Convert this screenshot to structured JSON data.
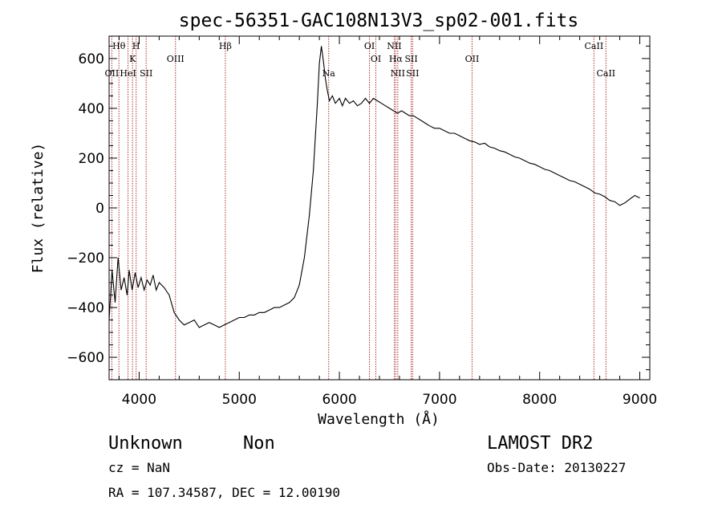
{
  "chart_data": {
    "type": "line",
    "title": "spec-56351-GAC108N13V3_sp02-001.fits",
    "xlabel": "Wavelength (Å)",
    "ylabel": "Flux (relative)",
    "xlim": [
      3700,
      9100
    ],
    "ylim": [
      -690,
      690
    ],
    "xticks": [
      4000,
      5000,
      6000,
      7000,
      8000,
      9000
    ],
    "yticks": [
      -600,
      -400,
      -200,
      0,
      200,
      400,
      600
    ],
    "x_tick_labels": [
      "4000",
      "5000",
      "6000",
      "7000",
      "8000",
      "9000"
    ],
    "y_tick_labels": [
      "−600",
      "−400",
      "−200",
      "0",
      "200",
      "400",
      "600"
    ],
    "grid": false,
    "legend": "none",
    "line_color": "#000000",
    "marker_line_color": "#b03030",
    "series": [
      {
        "points": [
          [
            3700,
            -450
          ],
          [
            3730,
            -250
          ],
          [
            3760,
            -380
          ],
          [
            3790,
            -200
          ],
          [
            3820,
            -330
          ],
          [
            3850,
            -280
          ],
          [
            3880,
            -350
          ],
          [
            3900,
            -250
          ],
          [
            3930,
            -330
          ],
          [
            3960,
            -260
          ],
          [
            3990,
            -320
          ],
          [
            4020,
            -280
          ],
          [
            4050,
            -330
          ],
          [
            4080,
            -290
          ],
          [
            4110,
            -310
          ],
          [
            4140,
            -270
          ],
          [
            4170,
            -330
          ],
          [
            4200,
            -300
          ],
          [
            4250,
            -320
          ],
          [
            4300,
            -350
          ],
          [
            4350,
            -420
          ],
          [
            4400,
            -450
          ],
          [
            4450,
            -470
          ],
          [
            4500,
            -460
          ],
          [
            4550,
            -450
          ],
          [
            4600,
            -480
          ],
          [
            4650,
            -470
          ],
          [
            4700,
            -460
          ],
          [
            4750,
            -470
          ],
          [
            4800,
            -480
          ],
          [
            4850,
            -470
          ],
          [
            4900,
            -460
          ],
          [
            4950,
            -450
          ],
          [
            5000,
            -440
          ],
          [
            5050,
            -440
          ],
          [
            5100,
            -430
          ],
          [
            5150,
            -430
          ],
          [
            5200,
            -420
          ],
          [
            5250,
            -420
          ],
          [
            5300,
            -410
          ],
          [
            5350,
            -400
          ],
          [
            5400,
            -400
          ],
          [
            5450,
            -390
          ],
          [
            5500,
            -380
          ],
          [
            5550,
            -360
          ],
          [
            5600,
            -310
          ],
          [
            5650,
            -200
          ],
          [
            5700,
            -30
          ],
          [
            5740,
            150
          ],
          [
            5780,
            420
          ],
          [
            5800,
            580
          ],
          [
            5820,
            650
          ],
          [
            5840,
            590
          ],
          [
            5860,
            520
          ],
          [
            5880,
            470
          ],
          [
            5900,
            430
          ],
          [
            5930,
            450
          ],
          [
            5960,
            420
          ],
          [
            6000,
            440
          ],
          [
            6030,
            410
          ],
          [
            6060,
            440
          ],
          [
            6100,
            420
          ],
          [
            6140,
            430
          ],
          [
            6180,
            410
          ],
          [
            6220,
            420
          ],
          [
            6260,
            440
          ],
          [
            6300,
            420
          ],
          [
            6340,
            440
          ],
          [
            6380,
            430
          ],
          [
            6420,
            420
          ],
          [
            6460,
            410
          ],
          [
            6500,
            400
          ],
          [
            6540,
            390
          ],
          [
            6580,
            380
          ],
          [
            6620,
            390
          ],
          [
            6660,
            380
          ],
          [
            6700,
            370
          ],
          [
            6740,
            370
          ],
          [
            6780,
            360
          ],
          [
            6820,
            350
          ],
          [
            6860,
            340
          ],
          [
            6900,
            330
          ],
          [
            6950,
            320
          ],
          [
            7000,
            320
          ],
          [
            7050,
            310
          ],
          [
            7100,
            300
          ],
          [
            7150,
            300
          ],
          [
            7200,
            290
          ],
          [
            7250,
            280
          ],
          [
            7300,
            270
          ],
          [
            7350,
            265
          ],
          [
            7400,
            255
          ],
          [
            7450,
            260
          ],
          [
            7500,
            245
          ],
          [
            7550,
            240
          ],
          [
            7600,
            230
          ],
          [
            7650,
            225
          ],
          [
            7700,
            215
          ],
          [
            7750,
            205
          ],
          [
            7800,
            200
          ],
          [
            7850,
            190
          ],
          [
            7900,
            180
          ],
          [
            7950,
            175
          ],
          [
            8000,
            165
          ],
          [
            8050,
            155
          ],
          [
            8100,
            150
          ],
          [
            8150,
            140
          ],
          [
            8200,
            130
          ],
          [
            8250,
            120
          ],
          [
            8300,
            110
          ],
          [
            8350,
            105
          ],
          [
            8400,
            95
          ],
          [
            8450,
            85
          ],
          [
            8500,
            75
          ],
          [
            8550,
            60
          ],
          [
            8600,
            55
          ],
          [
            8650,
            45
          ],
          [
            8700,
            30
          ],
          [
            8750,
            25
          ],
          [
            8800,
            10
          ],
          [
            8850,
            20
          ],
          [
            8900,
            35
          ],
          [
            8950,
            50
          ],
          [
            9000,
            40
          ]
        ]
      }
    ],
    "spectral_lines": [
      {
        "label": "Hθ",
        "x": 3798,
        "row": 1
      },
      {
        "label": "H",
        "x": 3970,
        "row": 1
      },
      {
        "label": "OII",
        "x": 3727,
        "row": 3
      },
      {
        "label": "K",
        "x": 3934,
        "row": 2
      },
      {
        "label": "HeI",
        "x": 3889,
        "row": 3
      },
      {
        "label": "SII",
        "x": 4070,
        "row": 3
      },
      {
        "label": "OIII",
        "x": 4363,
        "row": 2
      },
      {
        "label": "Hβ",
        "x": 4861,
        "row": 1
      },
      {
        "label": "OI",
        "x": 6300,
        "row": 1
      },
      {
        "label": "OI",
        "x": 6364,
        "row": 2
      },
      {
        "label": "NII",
        "x": 6548,
        "row": 1
      },
      {
        "label": "Hα",
        "x": 6563,
        "row": 2
      },
      {
        "label": "SII",
        "x": 6717,
        "row": 2
      },
      {
        "label": "NII",
        "x": 6583,
        "row": 3
      },
      {
        "label": "SII",
        "x": 6731,
        "row": 3
      },
      {
        "label": "OII",
        "x": 7325,
        "row": 2
      },
      {
        "label": "Na",
        "x": 5893,
        "row": 4
      },
      {
        "label": "CaII",
        "x": 8542,
        "row": 1
      },
      {
        "label": "CaII",
        "x": 8662,
        "row": 3
      }
    ]
  },
  "info": {
    "class_label": "Unknown",
    "subclass_label": "Non",
    "survey": "LAMOST DR2",
    "cz": "cz = NaN",
    "obs_date": "Obs-Date: 20130227",
    "radec": "RA = 107.34587, DEC =  12.00190"
  }
}
